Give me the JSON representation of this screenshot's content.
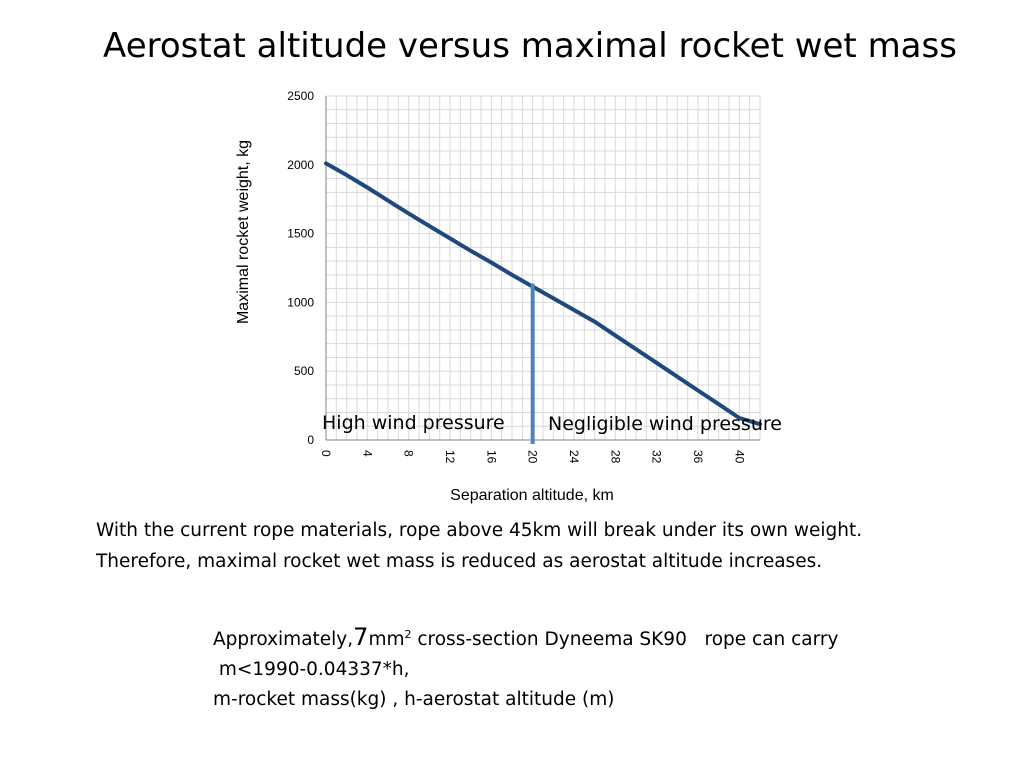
{
  "slide": {
    "title": "Aerostat altitude versus maximal rocket wet mass",
    "body_lines": [
      "With the current rope materials, rope above 45km will break under its own weight.",
      "Therefore, maximal rocket wet mass is reduced as aerostat altitude increases."
    ],
    "note": {
      "prefix": "Approximately,",
      "number": "7",
      "unit": "mm",
      "exponent": "2",
      "rest": " cross-section Dyneema SK90   rope can carry",
      "line2": " m<1990-0.04337*h,",
      "line3": "m-rocket mass(kg) , h-aerostat altitude (m)"
    }
  },
  "chart_data": {
    "type": "line",
    "title": "",
    "xlabel": "Separation altitude, km",
    "ylabel": "Maximal rocket weight, kg",
    "xlim": [
      0,
      42
    ],
    "ylim": [
      0,
      2500
    ],
    "x_ticks": [
      0,
      4,
      8,
      12,
      16,
      20,
      24,
      28,
      32,
      36,
      40
    ],
    "y_ticks": [
      0,
      500,
      1000,
      1500,
      2000,
      2500
    ],
    "grid": true,
    "series": [
      {
        "name": "",
        "color": "#1f497d",
        "x": [
          0,
          2,
          4,
          6,
          8,
          10,
          12,
          14,
          16,
          18,
          20,
          22,
          24,
          26,
          28,
          30,
          32,
          34,
          36,
          38,
          40,
          42
        ],
        "y": [
          2010,
          1925,
          1835,
          1740,
          1645,
          1555,
          1465,
          1375,
          1290,
          1200,
          1115,
          1030,
          945,
          860,
          760,
          660,
          560,
          460,
          360,
          260,
          160,
          115
        ]
      }
    ],
    "annotations": {
      "divider_x": 20,
      "divider_color": "#4f81bd",
      "left_label": "High wind pressure",
      "right_label": "Negligible wind pressure"
    }
  }
}
